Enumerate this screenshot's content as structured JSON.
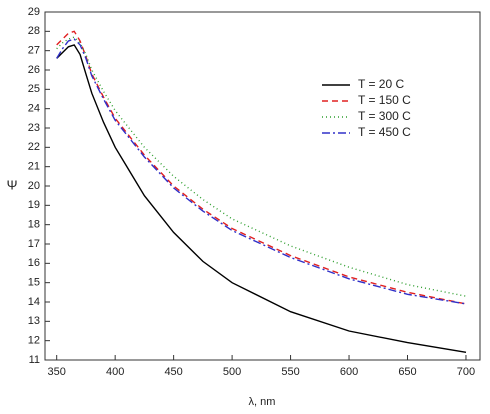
{
  "chart_data": {
    "type": "line",
    "x_label": "λ, nm",
    "y_label": "Ψ",
    "x": [
      350,
      355,
      360,
      365,
      370,
      375,
      380,
      390,
      400,
      425,
      450,
      475,
      500,
      550,
      600,
      650,
      700
    ],
    "series": [
      {
        "name": "T = 20 C",
        "color": "#000000",
        "dash": "none",
        "values": [
          26.6,
          26.9,
          27.2,
          27.3,
          26.8,
          25.8,
          24.8,
          23.3,
          22.0,
          19.5,
          17.6,
          16.1,
          15.0,
          13.5,
          12.5,
          11.9,
          11.4
        ]
      },
      {
        "name": "T = 150 C",
        "color": "#e02020",
        "dash": "6 4",
        "values": [
          27.3,
          27.6,
          27.9,
          28.0,
          27.5,
          26.7,
          25.8,
          24.6,
          23.5,
          21.6,
          20.0,
          18.8,
          17.8,
          16.4,
          15.3,
          14.5,
          13.9
        ]
      },
      {
        "name": "T = 300 C",
        "color": "#2e9e2e",
        "dash": "1 3",
        "values": [
          27.1,
          27.4,
          27.6,
          27.7,
          27.4,
          26.8,
          26.0,
          24.9,
          23.9,
          22.0,
          20.5,
          19.3,
          18.3,
          16.9,
          15.8,
          14.9,
          14.3
        ]
      },
      {
        "name": "T = 450 C",
        "color": "#3030c8",
        "dash": "8 3 2 3",
        "values": [
          26.6,
          27.1,
          27.5,
          27.6,
          27.3,
          26.6,
          25.7,
          24.5,
          23.4,
          21.5,
          19.9,
          18.7,
          17.7,
          16.3,
          15.2,
          14.4,
          13.9
        ]
      }
    ],
    "xlim": [
      340,
      712
    ],
    "ylim": [
      11,
      29
    ],
    "xticks": [
      350,
      400,
      450,
      500,
      550,
      600,
      650,
      700
    ],
    "yticks": [
      11,
      12,
      13,
      14,
      15,
      16,
      17,
      18,
      19,
      20,
      21,
      22,
      23,
      24,
      25,
      26,
      27,
      28,
      29
    ],
    "legend": "upper right"
  }
}
